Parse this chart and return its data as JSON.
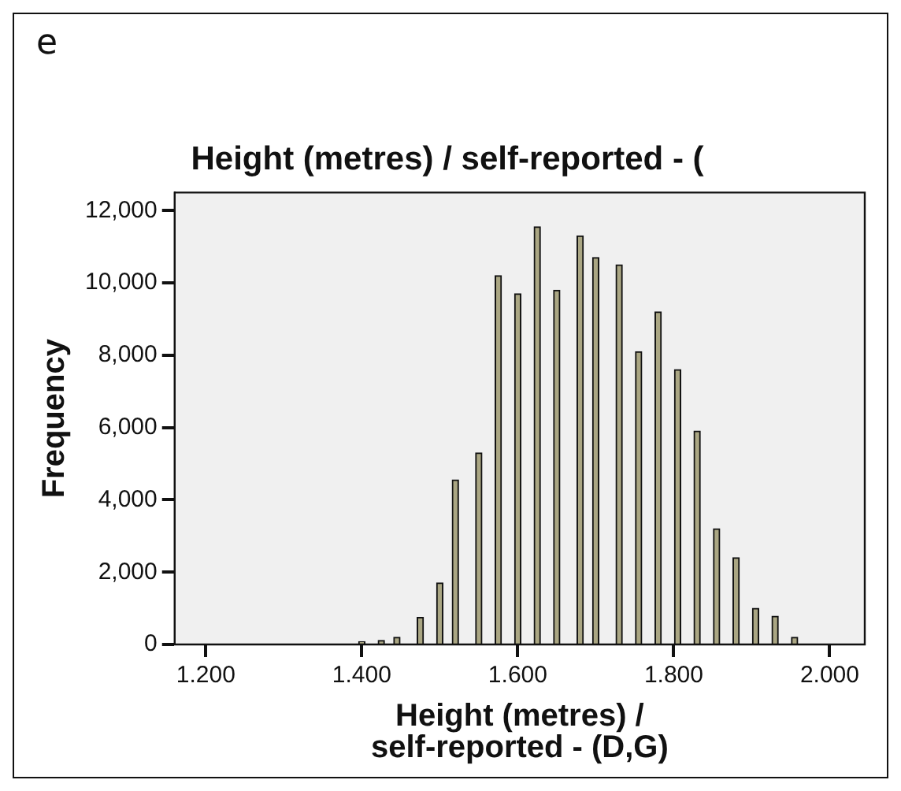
{
  "chart_data": {
    "type": "bar",
    "title": "Height (metres) / self-reported - (",
    "xlabel": "Height (metres) / self-reported - (D,G)",
    "ylabel": "Frequency",
    "annotations": [
      "e"
    ],
    "x": [
      1.27,
      1.295,
      1.32,
      1.345,
      1.37,
      1.4,
      1.425,
      1.445,
      1.475,
      1.5,
      1.52,
      1.55,
      1.575,
      1.6,
      1.625,
      1.65,
      1.68,
      1.7,
      1.73,
      1.755,
      1.78,
      1.805,
      1.83,
      1.855,
      1.88,
      1.905,
      1.93,
      1.955
    ],
    "values": [
      20,
      20,
      20,
      20,
      20,
      80,
      110,
      200,
      750,
      1700,
      4550,
      5300,
      10200,
      9700,
      11550,
      9800,
      11300,
      10700,
      10500,
      8100,
      9200,
      7600,
      5900,
      3200,
      2400,
      1000,
      780,
      200
    ],
    "color": "#aaa683",
    "xlim": [
      1.16,
      2.045
    ],
    "xticks": [
      {
        "value": 1.2,
        "label": "1.200"
      },
      {
        "value": 1.4,
        "label": "1.400"
      },
      {
        "value": 1.6,
        "label": "1.600"
      },
      {
        "value": 1.8,
        "label": "1.800"
      },
      {
        "value": 2.0,
        "label": "2.000"
      }
    ],
    "ylim": [
      0,
      12500
    ],
    "yticks": [
      {
        "value": 0,
        "label": "0"
      },
      {
        "value": 2000,
        "label": "2,000"
      },
      {
        "value": 4000,
        "label": "4,000"
      },
      {
        "value": 6000,
        "label": "6,000"
      },
      {
        "value": 8000,
        "label": "8,000"
      },
      {
        "value": 10000,
        "label": "10,000"
      },
      {
        "value": 12000,
        "label": "12,000"
      }
    ],
    "grid": false,
    "legend": false
  }
}
